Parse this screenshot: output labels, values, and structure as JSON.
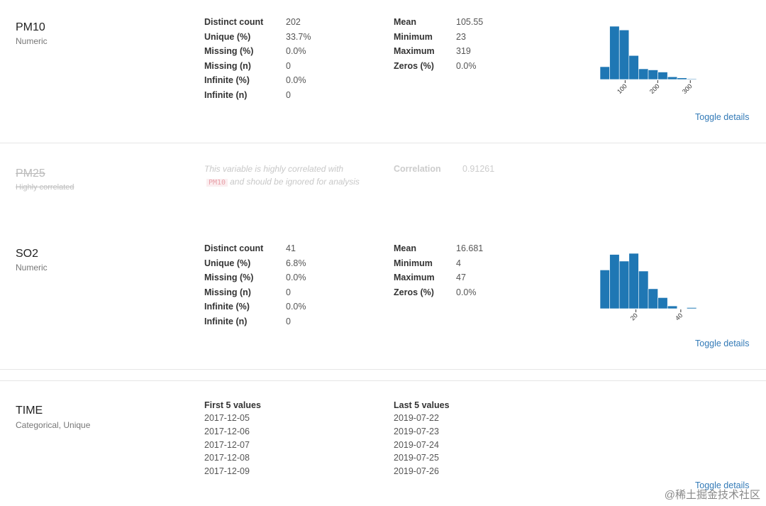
{
  "variables": [
    {
      "name": "PM10",
      "type": "Numeric",
      "stats_left": [
        {
          "label": "Distinct count",
          "value": "202"
        },
        {
          "label": "Unique (%)",
          "value": "33.7%"
        },
        {
          "label": "Missing (%)",
          "value": "0.0%"
        },
        {
          "label": "Missing (n)",
          "value": "0"
        },
        {
          "label": "Infinite (%)",
          "value": "0.0%"
        },
        {
          "label": "Infinite (n)",
          "value": "0"
        }
      ],
      "stats_right": [
        {
          "label": "Mean",
          "value": "105.55"
        },
        {
          "label": "Minimum",
          "value": "23"
        },
        {
          "label": "Maximum",
          "value": "319"
        },
        {
          "label": "Zeros (%)",
          "value": "0.0%"
        }
      ],
      "toggle_label": "Toggle details"
    },
    {
      "name": "PM25",
      "type": "Highly correlated",
      "message_before": "This variable is highly correlated with",
      "correlated_with": "PM10",
      "message_after": "and should be ignored for analysis",
      "correlation_label": "Correlation",
      "correlation_value": "0.91261"
    },
    {
      "name": "SO2",
      "type": "Numeric",
      "stats_left": [
        {
          "label": "Distinct count",
          "value": "41"
        },
        {
          "label": "Unique (%)",
          "value": "6.8%"
        },
        {
          "label": "Missing (%)",
          "value": "0.0%"
        },
        {
          "label": "Missing (n)",
          "value": "0"
        },
        {
          "label": "Infinite (%)",
          "value": "0.0%"
        },
        {
          "label": "Infinite (n)",
          "value": "0"
        }
      ],
      "stats_right": [
        {
          "label": "Mean",
          "value": "16.681"
        },
        {
          "label": "Minimum",
          "value": "4"
        },
        {
          "label": "Maximum",
          "value": "47"
        },
        {
          "label": "Zeros (%)",
          "value": "0.0%"
        }
      ],
      "toggle_label": "Toggle details"
    },
    {
      "name": "TIME",
      "type": "Categorical, Unique",
      "first_header": "First 5 values",
      "first_values": [
        "2017-12-05",
        "2017-12-06",
        "2017-12-07",
        "2017-12-08",
        "2017-12-09"
      ],
      "last_header": "Last 5 values",
      "last_values": [
        "2019-07-22",
        "2019-07-23",
        "2019-07-24",
        "2019-07-25",
        "2019-07-26"
      ],
      "toggle_label": "Toggle details"
    }
  ],
  "chart_data": [
    {
      "type": "bar",
      "variable": "PM10",
      "bin_edges": [
        23,
        52.6,
        82.2,
        111.8,
        141.4,
        171,
        200.6,
        230.2,
        259.8,
        289.4,
        319
      ],
      "values": [
        0.24,
        1.0,
        0.93,
        0.45,
        0.2,
        0.18,
        0.14,
        0.05,
        0.03,
        0.01
      ],
      "xlim": [
        23,
        319
      ],
      "x_ticks": [
        100,
        200,
        300
      ],
      "bar_color": "#1f77b4"
    },
    {
      "type": "bar",
      "variable": "SO2",
      "bin_edges": [
        4,
        8.3,
        12.6,
        16.9,
        21.2,
        25.5,
        29.8,
        34.1,
        38.4,
        42.7,
        47
      ],
      "values": [
        0.7,
        0.98,
        0.86,
        1.0,
        0.68,
        0.36,
        0.2,
        0.05,
        0.0,
        0.02
      ],
      "xlim": [
        4,
        47
      ],
      "x_ticks": [
        20,
        40
      ],
      "bar_color": "#1f77b4"
    }
  ],
  "watermark": "@稀土掘金技术社区"
}
